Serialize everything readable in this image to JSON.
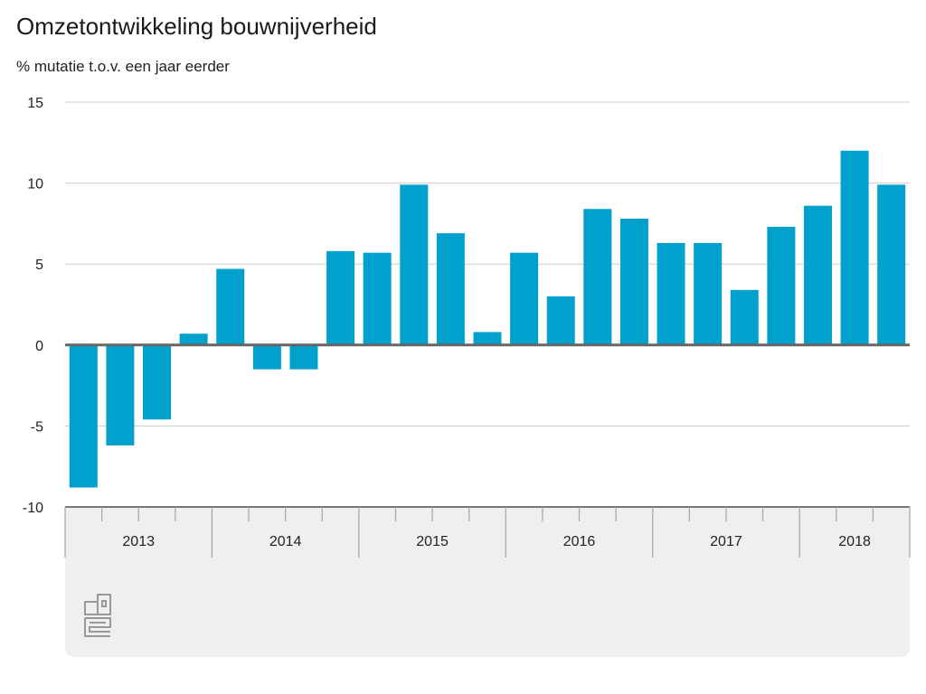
{
  "chart_data": {
    "type": "bar",
    "title": "Omzetontwikkeling bouwnijverheid",
    "ylabel": "% mutatie t.o.v. een jaar eerder",
    "xlabel": "",
    "ylim": [
      -10,
      15
    ],
    "yticks": [
      15,
      10,
      5,
      0,
      -5,
      -10
    ],
    "grid": true,
    "color": "#00a1cd",
    "years": [
      "2013",
      "2014",
      "2015",
      "2016",
      "2017",
      "2018"
    ],
    "categories": [
      "2013 Q1",
      "2013 Q2",
      "2013 Q3",
      "2013 Q4",
      "2014 Q1",
      "2014 Q2",
      "2014 Q3",
      "2014 Q4",
      "2015 Q1",
      "2015 Q2",
      "2015 Q3",
      "2015 Q4",
      "2016 Q1",
      "2016 Q2",
      "2016 Q3",
      "2016 Q4",
      "2017 Q1",
      "2017 Q2",
      "2017 Q3",
      "2017 Q4",
      "2018 Q1",
      "2018 Q2",
      "2018 Q3"
    ],
    "values": [
      -8.8,
      -6.2,
      -4.6,
      0.7,
      4.7,
      -1.5,
      -1.5,
      5.8,
      5.7,
      9.9,
      6.9,
      0.8,
      5.7,
      3.0,
      8.4,
      7.8,
      6.3,
      6.3,
      3.4,
      7.3,
      8.6,
      12.0,
      9.9
    ]
  },
  "logo_text": "cbs"
}
